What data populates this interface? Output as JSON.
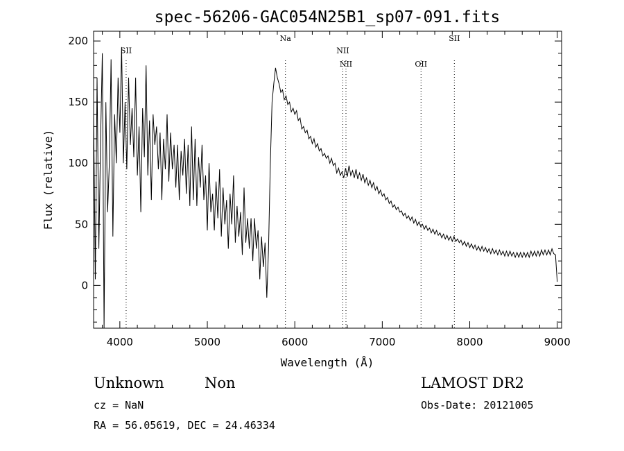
{
  "chart_data": {
    "type": "line",
    "title": "spec-56206-GAC054N25B1_sp07-091.fits",
    "xlabel": "Wavelength (Å)",
    "ylabel": "Flux (relative)",
    "xlim": [
      3700,
      9050
    ],
    "ylim": [
      -35,
      208
    ],
    "xticks": [
      4000,
      5000,
      6000,
      7000,
      8000,
      9000
    ],
    "yticks": [
      0,
      50,
      100,
      150,
      200
    ],
    "grid": false,
    "line_color": "#000000",
    "series": [
      {
        "x": [
          3700,
          3720,
          3740,
          3760,
          3780,
          3800,
          3820,
          3840,
          3860,
          3880,
          3900,
          3920,
          3940,
          3960,
          3980,
          4000,
          4020,
          4040,
          4060,
          4080,
          4100,
          4120,
          4140,
          4160,
          4180,
          4200,
          4220,
          4240,
          4260,
          4280,
          4300,
          4320,
          4340,
          4360,
          4380,
          4400,
          4420,
          4440,
          4460,
          4480,
          4500,
          4520,
          4540,
          4560,
          4580,
          4600,
          4620,
          4640,
          4660,
          4680,
          4700,
          4720,
          4740,
          4760,
          4780,
          4800,
          4820,
          4840,
          4860,
          4880,
          4900,
          4920,
          4940,
          4960,
          4980,
          5000,
          5020,
          5040,
          5060,
          5080,
          5100,
          5120,
          5140,
          5160,
          5180,
          5200,
          5220,
          5240,
          5260,
          5280,
          5300,
          5320,
          5340,
          5360,
          5380,
          5400,
          5420,
          5440,
          5460,
          5480,
          5500,
          5520,
          5540,
          5560,
          5580,
          5600,
          5620,
          5640,
          5660,
          5680,
          5700,
          5720,
          5740,
          5760,
          5780,
          5800,
          5820,
          5840,
          5860,
          5880,
          5900,
          5920,
          5940,
          5960,
          5980,
          6000,
          6020,
          6040,
          6060,
          6080,
          6100,
          6120,
          6140,
          6160,
          6180,
          6200,
          6220,
          6240,
          6260,
          6280,
          6300,
          6320,
          6340,
          6360,
          6380,
          6400,
          6420,
          6440,
          6460,
          6480,
          6500,
          6520,
          6540,
          6560,
          6580,
          6600,
          6620,
          6640,
          6660,
          6680,
          6700,
          6720,
          6740,
          6760,
          6780,
          6800,
          6820,
          6840,
          6860,
          6880,
          6900,
          6920,
          6940,
          6960,
          6980,
          7000,
          7020,
          7040,
          7060,
          7080,
          7100,
          7120,
          7140,
          7160,
          7180,
          7200,
          7220,
          7240,
          7260,
          7280,
          7300,
          7320,
          7340,
          7360,
          7380,
          7400,
          7420,
          7440,
          7460,
          7480,
          7500,
          7520,
          7540,
          7560,
          7580,
          7600,
          7620,
          7640,
          7660,
          7680,
          7700,
          7720,
          7740,
          7760,
          7780,
          7800,
          7820,
          7840,
          7860,
          7880,
          7900,
          7920,
          7940,
          7960,
          7980,
          8000,
          8020,
          8040,
          8060,
          8080,
          8100,
          8120,
          8140,
          8160,
          8180,
          8200,
          8220,
          8240,
          8260,
          8280,
          8300,
          8320,
          8340,
          8360,
          8380,
          8400,
          8420,
          8440,
          8460,
          8480,
          8500,
          8520,
          8540,
          8560,
          8580,
          8600,
          8620,
          8640,
          8660,
          8680,
          8700,
          8720,
          8740,
          8760,
          8780,
          8800,
          8820,
          8840,
          8860,
          8880,
          8900,
          8920,
          8940,
          8960,
          8980,
          9000
        ],
        "y": [
          140,
          5,
          170,
          30,
          120,
          190,
          -35,
          150,
          60,
          100,
          185,
          40,
          140,
          100,
          170,
          125,
          195,
          100,
          150,
          95,
          170,
          115,
          145,
          105,
          170,
          90,
          130,
          60,
          145,
          105,
          180,
          90,
          135,
          70,
          140,
          115,
          130,
          95,
          125,
          70,
          120,
          95,
          140,
          85,
          125,
          95,
          115,
          80,
          115,
          70,
          110,
          90,
          120,
          75,
          115,
          65,
          130,
          70,
          120,
          65,
          105,
          80,
          115,
          70,
          90,
          45,
          100,
          60,
          75,
          45,
          85,
          55,
          95,
          40,
          80,
          50,
          70,
          30,
          75,
          50,
          90,
          35,
          65,
          40,
          60,
          25,
          80,
          35,
          55,
          30,
          55,
          20,
          55,
          30,
          45,
          5,
          40,
          15,
          35,
          -10,
          30,
          100,
          150,
          165,
          178,
          170,
          165,
          158,
          160,
          152,
          155,
          148,
          150,
          142,
          145,
          140,
          143,
          135,
          137,
          128,
          130,
          125,
          127,
          120,
          122,
          116,
          120,
          113,
          116,
          110,
          112,
          106,
          108,
          104,
          106,
          100,
          104,
          98,
          100,
          92,
          96,
          90,
          93,
          88,
          96,
          89,
          98,
          90,
          94,
          88,
          95,
          87,
          92,
          86,
          91,
          84,
          88,
          82,
          86,
          80,
          84,
          78,
          81,
          75,
          78,
          73,
          75,
          70,
          72,
          67,
          69,
          64,
          66,
          62,
          64,
          60,
          61,
          57,
          59,
          55,
          57,
          53,
          56,
          51,
          54,
          49,
          52,
          48,
          50,
          46,
          49,
          45,
          47,
          43,
          46,
          42,
          45,
          41,
          43,
          39,
          42,
          38,
          41,
          37,
          40,
          36,
          40,
          36,
          38,
          35,
          37,
          33,
          36,
          32,
          35,
          31,
          34,
          30,
          33,
          29,
          32,
          28,
          32,
          28,
          31,
          27,
          30,
          26,
          30,
          26,
          29,
          25,
          29,
          25,
          28,
          24,
          28,
          24,
          28,
          24,
          27,
          23,
          27,
          23,
          27,
          23,
          27,
          23,
          27,
          23,
          28,
          24,
          28,
          24,
          28,
          24,
          29,
          25,
          29,
          25,
          29,
          25,
          30,
          26,
          25,
          3
        ]
      }
    ],
    "lines": [
      {
        "wavelength": 4072,
        "label": "SII",
        "label_y": 190
      },
      {
        "wavelength": 5893,
        "label": "Na",
        "label_y": 200
      },
      {
        "wavelength": 6549,
        "label": "NII",
        "label_y": 190
      },
      {
        "wavelength": 6585,
        "label": "NII",
        "label_y": 179
      },
      {
        "wavelength": 7443,
        "label": "OII",
        "label_y": 179
      },
      {
        "wavelength": 7824,
        "label": "SII",
        "label_y": 200
      }
    ]
  },
  "info": {
    "classification": "Unknown",
    "subclass": "Non",
    "cz": "cz = NaN",
    "coords": "RA =  56.05619, DEC =  24.46334",
    "survey": "LAMOST DR2",
    "obs_date": "Obs-Date: 20121005"
  }
}
